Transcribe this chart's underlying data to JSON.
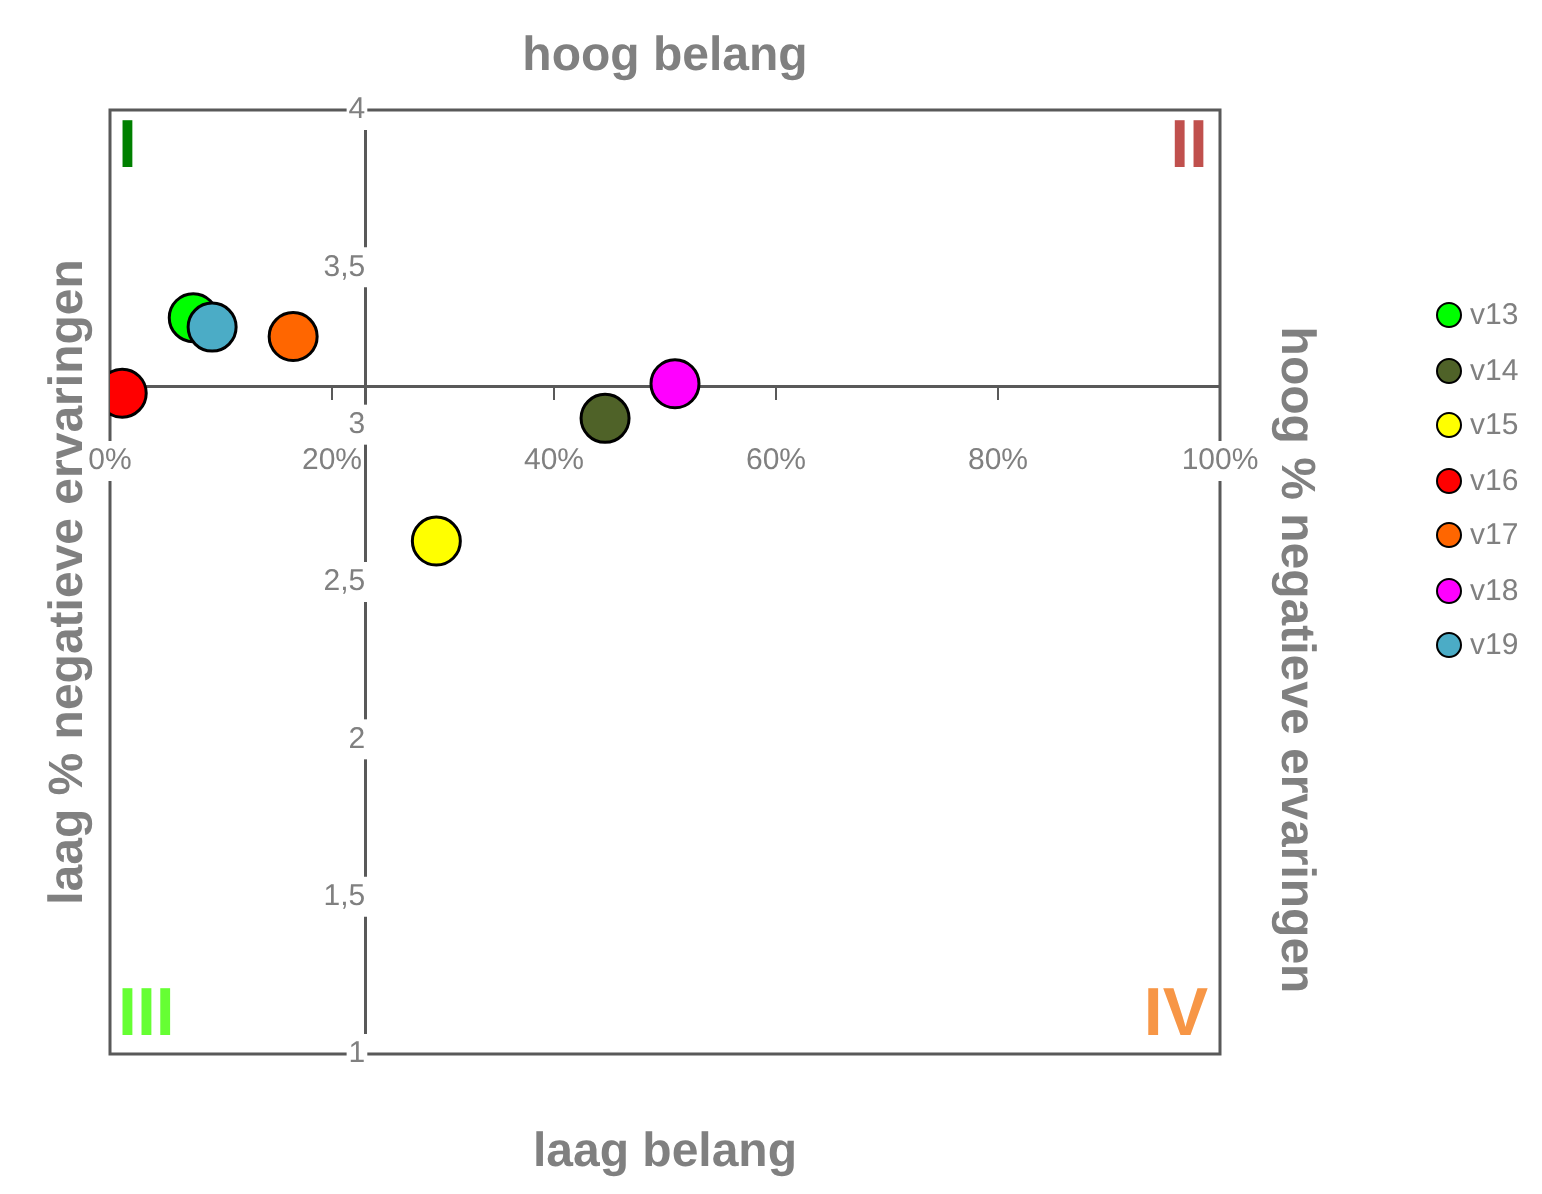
{
  "chart_data": {
    "type": "scatter",
    "title": "hoog belang",
    "xlabel": "laag belang",
    "ylabel": "laag % negatieve ervaringen",
    "y2label": "hoog % negatieve ervaringen",
    "annotations": [
      "I",
      "II",
      "III",
      "IV"
    ],
    "xlim": [
      0,
      100
    ],
    "xticks": [
      {
        "value": 0,
        "label": "0%"
      },
      {
        "value": 20,
        "label": "20%"
      },
      {
        "value": 40,
        "label": "40%"
      },
      {
        "value": 60,
        "label": "60%"
      },
      {
        "value": 80,
        "label": "80%"
      },
      {
        "value": 100,
        "label": "100%"
      }
    ],
    "ylim": [
      1,
      4
    ],
    "yticks": [
      1,
      {
        "value": 1.5,
        "label": "1,5"
      },
      2,
      {
        "value": 2.5,
        "label": "2,5"
      },
      3,
      {
        "value": 3.5,
        "label": "3,5"
      },
      4
    ],
    "grid": false,
    "legend": "right",
    "marker": "circle",
    "series": [
      {
        "name": "v13",
        "color": "#00ff00",
        "x": [
          7.5
        ],
        "values": [
          3.34
        ]
      },
      {
        "name": "v14",
        "color": "#4f6228",
        "x": [
          44.6
        ],
        "values": [
          3.02
        ]
      },
      {
        "name": "v15",
        "color": "#ffff00",
        "x": [
          29.4
        ],
        "values": [
          2.63
        ]
      },
      {
        "name": "v16",
        "color": "#ff0000",
        "x": [
          1.1
        ],
        "values": [
          3.1
        ]
      },
      {
        "name": "v17",
        "color": "#ff6600",
        "x": [
          16.5
        ],
        "values": [
          3.28
        ]
      },
      {
        "name": "v18",
        "color": "#ff00ff",
        "x": [
          50.9
        ],
        "values": [
          3.13
        ]
      },
      {
        "name": "v19",
        "color": "#4bacc6",
        "x": [
          9.2
        ],
        "values": [
          3.31
        ]
      }
    ]
  }
}
